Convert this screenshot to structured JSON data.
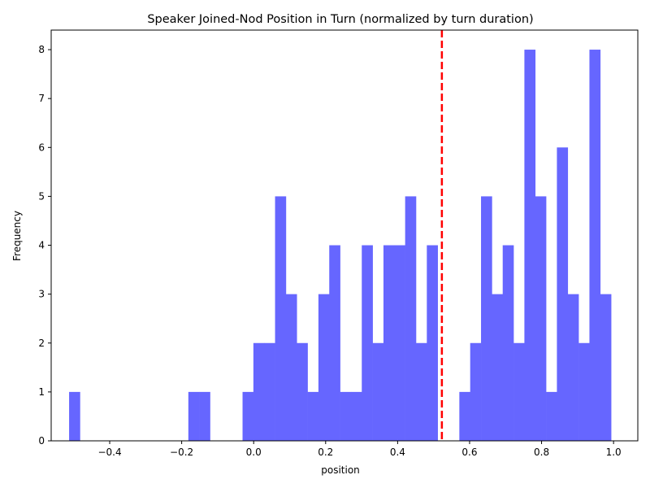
{
  "chart_data": {
    "type": "bar",
    "title": "Speaker Joined-Nod Position in Turn (normalized by turn duration)",
    "xlabel": "position",
    "ylabel": "Frequency",
    "xlim": [
      -0.5626,
      1.0674
    ],
    "ylim": [
      0,
      8.4
    ],
    "grid": false,
    "bar_color": "#6666ff",
    "reference_line": {
      "x": 0.523,
      "color": "#ff0000",
      "style": "dashed"
    },
    "x_ticks": [
      -0.4,
      -0.2,
      0.0,
      0.2,
      0.4,
      0.6,
      0.8,
      1.0
    ],
    "x_tick_labels": [
      "−0.4",
      "−0.2",
      "0.0",
      "0.2",
      "0.4",
      "0.6",
      "0.8",
      "1.0"
    ],
    "y_ticks": [
      0,
      1,
      2,
      3,
      4,
      5,
      6,
      7,
      8
    ],
    "y_tick_labels": [
      "0",
      "1",
      "2",
      "3",
      "4",
      "5",
      "6",
      "7",
      "8"
    ],
    "bin_start": -0.5128,
    "bin_width": 0.03012,
    "counts": [
      1,
      0,
      0,
      0,
      0,
      0,
      0,
      0,
      0,
      0,
      0,
      1,
      1,
      0,
      0,
      0,
      1,
      2,
      2,
      5,
      3,
      2,
      1,
      3,
      4,
      1,
      1,
      4,
      2,
      4,
      4,
      5,
      2,
      4,
      0,
      0,
      1,
      2,
      5,
      3,
      4,
      2,
      8,
      5,
      1,
      6,
      3,
      2,
      8,
      3
    ]
  }
}
